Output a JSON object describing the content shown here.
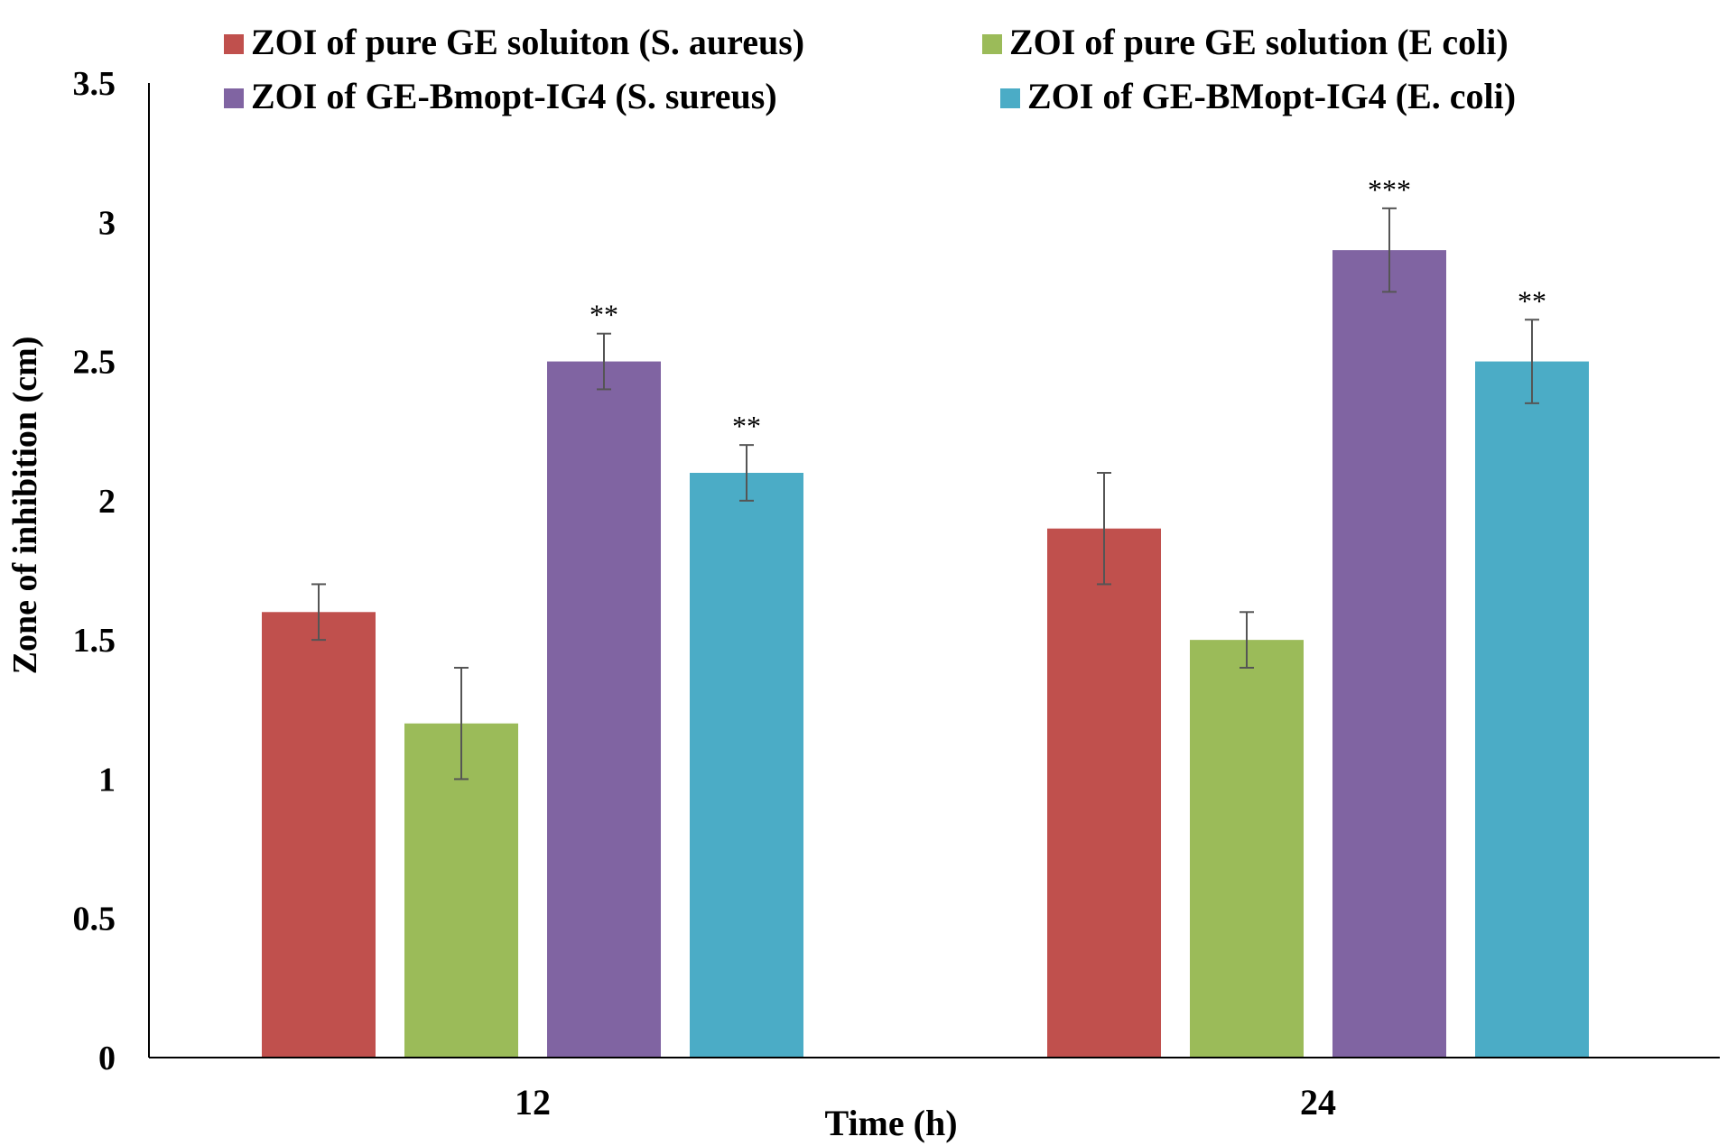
{
  "chart_data": {
    "type": "bar",
    "title": "",
    "xlabel": "Time (h)",
    "ylabel": "Zone of inhibition (cm)",
    "ylim": [
      0,
      3.5
    ],
    "yticks": [
      "0",
      "0.5",
      "1",
      "1.5",
      "2",
      "2.5",
      "3",
      "3.5"
    ],
    "grid": false,
    "legend_position": "top",
    "categories": [
      "12",
      "24"
    ],
    "series": [
      {
        "name": "ZOI of pure GE soluiton (S. aureus)",
        "color": "#C0504D",
        "values": [
          1.6,
          1.9
        ],
        "errors": [
          0.1,
          0.2
        ],
        "significance": [
          "",
          ""
        ]
      },
      {
        "name": "ZOI of pure GE solution (E coli)",
        "color": "#9BBB59",
        "values": [
          1.2,
          1.5
        ],
        "errors": [
          0.2,
          0.1
        ],
        "significance": [
          "",
          ""
        ]
      },
      {
        "name": "ZOI of GE-Bmopt-IG4 (S. sureus)",
        "color": "#8064A2",
        "values": [
          2.5,
          2.9
        ],
        "errors": [
          0.1,
          0.15
        ],
        "significance": [
          "**",
          "***"
        ]
      },
      {
        "name": "ZOI of GE-BMopt-IG4 (E. coli)",
        "color": "#4BACC6",
        "values": [
          2.1,
          2.5
        ],
        "errors": [
          0.1,
          0.15
        ],
        "significance": [
          "**",
          "**"
        ]
      }
    ]
  }
}
